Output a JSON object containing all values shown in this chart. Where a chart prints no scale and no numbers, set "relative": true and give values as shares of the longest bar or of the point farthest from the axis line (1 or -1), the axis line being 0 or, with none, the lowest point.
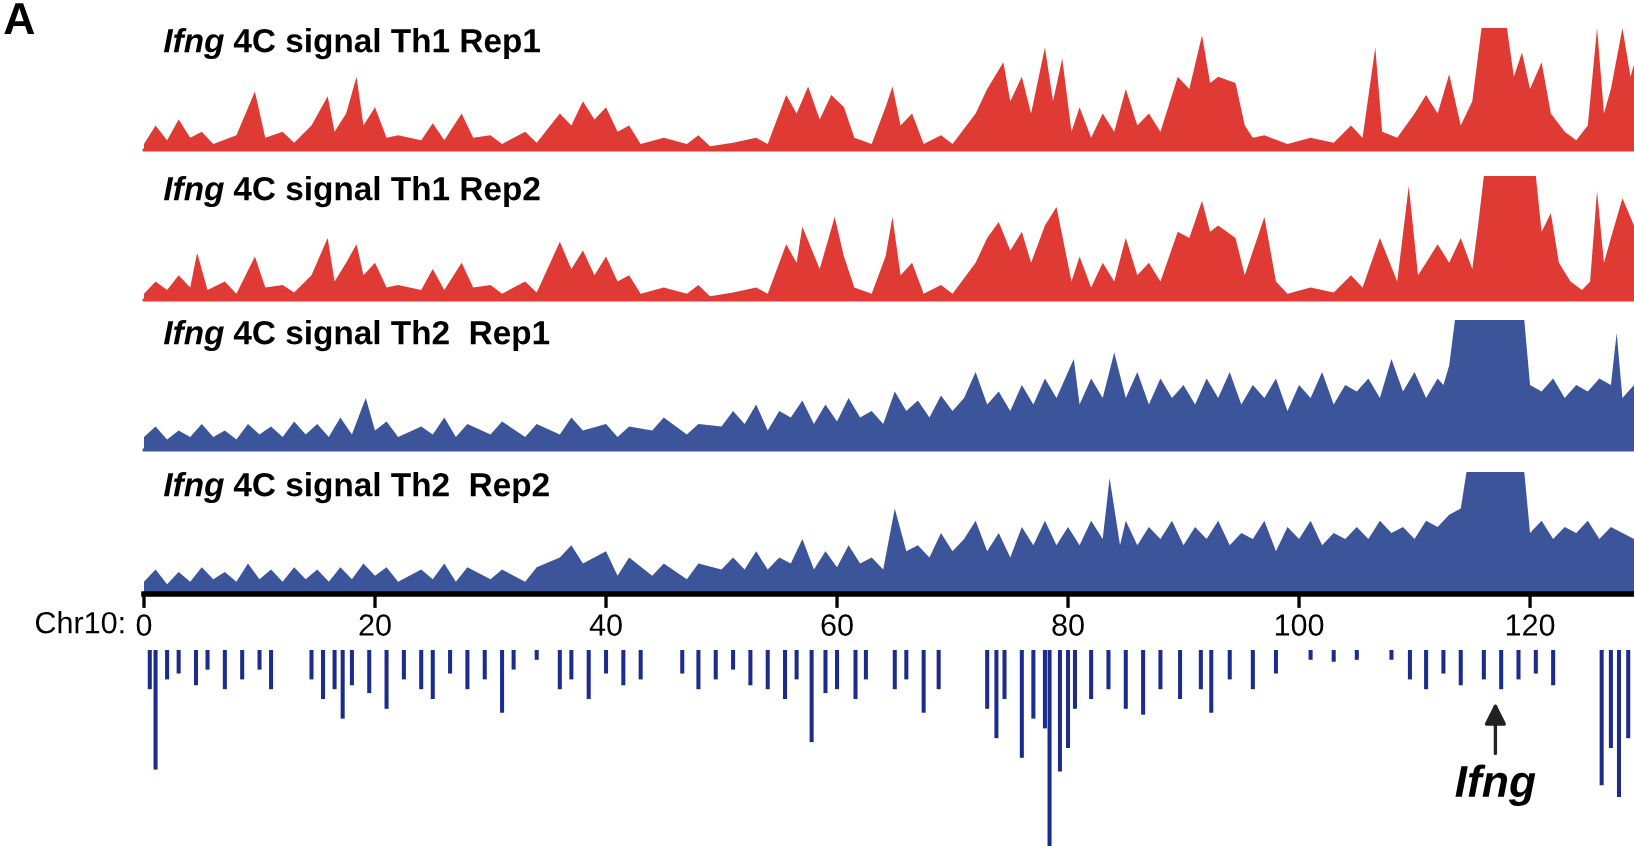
{
  "chart_data": [
    {
      "type": "area",
      "title": "Ifng 4C signal Th1 Rep1",
      "relative": true,
      "xlim": [
        0,
        129
      ],
      "tick_labels": false,
      "annotations": [
        "A"
      ],
      "series": [
        {
          "color": "#e03a35",
          "x": [
            0,
            1,
            2,
            3,
            4,
            5,
            6,
            8,
            9.6,
            10.5,
            12,
            13,
            14.5,
            15.9,
            16.5,
            17.5,
            18.4,
            19,
            20,
            21,
            22,
            24,
            25,
            26,
            27.5,
            28.5,
            30,
            31,
            33,
            34,
            36,
            37,
            38,
            39,
            40,
            41,
            42,
            43,
            45,
            47,
            48,
            49,
            51,
            53,
            54,
            55.6,
            56.5,
            57.5,
            58.5,
            59.5,
            60.6,
            61.5,
            63,
            64.2,
            64.8,
            65.5,
            66.5,
            67.5,
            69,
            70,
            72,
            73,
            74.4,
            75,
            76,
            76.8,
            78,
            78.7,
            79.5,
            80.3,
            81,
            82,
            83,
            84,
            85,
            86,
            87,
            88,
            89.5,
            90.5,
            91.6,
            92.3,
            93,
            94.5,
            95.3,
            96,
            97,
            99,
            101,
            103,
            104.5,
            105.5,
            106.6,
            107.2,
            108.5,
            110,
            111,
            112,
            113,
            114,
            115,
            115.8,
            118,
            118.6,
            119.3,
            120,
            121,
            121.8,
            123,
            124,
            125,
            125.8,
            126.4,
            127,
            128,
            128.7,
            129
          ],
          "values": [
            0.05,
            0.2,
            0.08,
            0.25,
            0.1,
            0.15,
            0.05,
            0.12,
            0.48,
            0.1,
            0.15,
            0.06,
            0.2,
            0.44,
            0.15,
            0.3,
            0.6,
            0.2,
            0.35,
            0.1,
            0.12,
            0.08,
            0.22,
            0.08,
            0.3,
            0.1,
            0.12,
            0.05,
            0.15,
            0.06,
            0.3,
            0.2,
            0.4,
            0.25,
            0.35,
            0.15,
            0.2,
            0.05,
            0.1,
            0.05,
            0.12,
            0.03,
            0.06,
            0.1,
            0.05,
            0.45,
            0.3,
            0.52,
            0.25,
            0.45,
            0.35,
            0.1,
            0.05,
            0.35,
            0.52,
            0.2,
            0.3,
            0.05,
            0.12,
            0.05,
            0.3,
            0.5,
            0.72,
            0.4,
            0.6,
            0.3,
            0.84,
            0.4,
            0.75,
            0.15,
            0.35,
            0.1,
            0.3,
            0.15,
            0.5,
            0.2,
            0.3,
            0.15,
            0.6,
            0.5,
            0.94,
            0.55,
            0.6,
            0.55,
            0.2,
            0.1,
            0.12,
            0.05,
            0.1,
            0.06,
            0.2,
            0.1,
            0.84,
            0.15,
            0.1,
            0.3,
            0.45,
            0.3,
            0.62,
            0.2,
            0.4,
            1,
            1,
            0.6,
            0.8,
            0.5,
            0.72,
            0.3,
            0.15,
            0.08,
            0.2,
            1,
            0.3,
            0.5,
            1,
            0.6,
            0.7
          ]
        }
      ]
    },
    {
      "type": "area",
      "title": "Ifng 4C signal Th1 Rep2",
      "relative": true,
      "xlim": [
        0,
        129
      ],
      "tick_labels": false,
      "series": [
        {
          "color": "#e03a35",
          "x": [
            0,
            1,
            2,
            3,
            4,
            4.6,
            5.5,
            7,
            8,
            9.6,
            10.5,
            12,
            13,
            14.5,
            15.9,
            16.5,
            17.5,
            18.4,
            19,
            20,
            21,
            22,
            24,
            25,
            26,
            27.5,
            28.5,
            30,
            31,
            33,
            34,
            36,
            37,
            38,
            39,
            40,
            41,
            42,
            43,
            45,
            47,
            48,
            49,
            51,
            53,
            54,
            55.6,
            56.5,
            57,
            58.5,
            59.8,
            60.6,
            61.5,
            63,
            64.2,
            64.8,
            65.5,
            66.5,
            67.5,
            69,
            70,
            72,
            73,
            74,
            75,
            76,
            76.8,
            78,
            79,
            80.3,
            81,
            82,
            83,
            84,
            85,
            86,
            87,
            88,
            89.5,
            90.5,
            91.6,
            92.3,
            93,
            94.5,
            95.3,
            97,
            98,
            99,
            101,
            103,
            104.5,
            105.5,
            107,
            108.5,
            109.5,
            110.3,
            111,
            112,
            113,
            114,
            115,
            115.5,
            116,
            118,
            120.5,
            121,
            121.8,
            122.5,
            123.5,
            124.5,
            125.2,
            125.8,
            126.4,
            127,
            128,
            129
          ],
          "values": [
            0.05,
            0.15,
            0.08,
            0.2,
            0.1,
            0.38,
            0.08,
            0.15,
            0.05,
            0.35,
            0.1,
            0.12,
            0.06,
            0.2,
            0.5,
            0.15,
            0.3,
            0.45,
            0.2,
            0.3,
            0.1,
            0.12,
            0.08,
            0.25,
            0.08,
            0.3,
            0.1,
            0.12,
            0.05,
            0.15,
            0.06,
            0.47,
            0.25,
            0.4,
            0.2,
            0.35,
            0.15,
            0.2,
            0.05,
            0.1,
            0.05,
            0.12,
            0.03,
            0.06,
            0.1,
            0.05,
            0.45,
            0.3,
            0.59,
            0.25,
            0.67,
            0.35,
            0.1,
            0.05,
            0.35,
            0.67,
            0.2,
            0.3,
            0.05,
            0.12,
            0.05,
            0.3,
            0.5,
            0.63,
            0.4,
            0.55,
            0.3,
            0.6,
            0.75,
            0.15,
            0.35,
            0.1,
            0.3,
            0.15,
            0.5,
            0.2,
            0.3,
            0.15,
            0.55,
            0.5,
            0.8,
            0.55,
            0.6,
            0.5,
            0.2,
            0.67,
            0.15,
            0.05,
            0.1,
            0.06,
            0.2,
            0.1,
            0.5,
            0.15,
            0.92,
            0.2,
            0.3,
            0.45,
            0.3,
            0.5,
            0.25,
            0.6,
            1,
            1,
            1,
            0.55,
            0.7,
            0.3,
            0.15,
            0.08,
            0.15,
            0.88,
            0.3,
            0.5,
            0.82,
            0.6
          ]
        }
      ]
    },
    {
      "type": "area",
      "title": "Ifng 4C signal Th2  Rep1",
      "relative": true,
      "xlim": [
        0,
        129
      ],
      "tick_labels": false,
      "series": [
        {
          "color": "#3c5499",
          "x": [
            0,
            1,
            2,
            3,
            4,
            5,
            6,
            7,
            8,
            9,
            10,
            11,
            12,
            13,
            14,
            15,
            16,
            17,
            18,
            19.2,
            20,
            21,
            22,
            24,
            25,
            26,
            27,
            28,
            30,
            31,
            33,
            34,
            36,
            37,
            38,
            40,
            41,
            42,
            44,
            45,
            47,
            48,
            50,
            51,
            52,
            53,
            54,
            55,
            56,
            57,
            58,
            59,
            60,
            61,
            62,
            63,
            64,
            65,
            66,
            67,
            68,
            69,
            70,
            71,
            72,
            73,
            74,
            75,
            76,
            77,
            78,
            79,
            80,
            80.5,
            81,
            82,
            83,
            84,
            85,
            86,
            87,
            88,
            89,
            90,
            91,
            92,
            93,
            94,
            95,
            96,
            97,
            98,
            99,
            100,
            101,
            102,
            103,
            104,
            105,
            106,
            107,
            108,
            109,
            110,
            111,
            112,
            112.5,
            113,
            113.5,
            119.5,
            120,
            121,
            122,
            123,
            124,
            125,
            126,
            127,
            127.5,
            128,
            129
          ],
          "values": [
            0.1,
            0.18,
            0.08,
            0.15,
            0.1,
            0.2,
            0.1,
            0.15,
            0.08,
            0.2,
            0.12,
            0.18,
            0.1,
            0.22,
            0.12,
            0.2,
            0.1,
            0.25,
            0.12,
            0.4,
            0.15,
            0.22,
            0.1,
            0.18,
            0.12,
            0.25,
            0.1,
            0.2,
            0.12,
            0.22,
            0.1,
            0.2,
            0.12,
            0.25,
            0.15,
            0.2,
            0.1,
            0.18,
            0.15,
            0.25,
            0.12,
            0.2,
            0.18,
            0.3,
            0.2,
            0.35,
            0.15,
            0.3,
            0.25,
            0.38,
            0.2,
            0.35,
            0.22,
            0.4,
            0.25,
            0.3,
            0.2,
            0.45,
            0.3,
            0.38,
            0.25,
            0.42,
            0.3,
            0.4,
            0.6,
            0.35,
            0.45,
            0.3,
            0.5,
            0.35,
            0.55,
            0.4,
            0.6,
            0.7,
            0.35,
            0.55,
            0.4,
            0.75,
            0.4,
            0.6,
            0.35,
            0.55,
            0.4,
            0.5,
            0.35,
            0.55,
            0.4,
            0.6,
            0.35,
            0.5,
            0.4,
            0.55,
            0.3,
            0.5,
            0.4,
            0.6,
            0.35,
            0.5,
            0.45,
            0.55,
            0.4,
            0.7,
            0.45,
            0.6,
            0.4,
            0.55,
            0.5,
            0.65,
            1,
            1,
            0.5,
            0.45,
            0.55,
            0.4,
            0.5,
            0.45,
            0.55,
            0.5,
            0.9,
            0.4,
            0.5
          ]
        }
      ]
    },
    {
      "type": "area",
      "title": "Ifng 4C signal Th2  Rep2",
      "relative": true,
      "xlim": [
        0,
        129
      ],
      "tick_labels": "x",
      "xticks": [
        0,
        20,
        40,
        60,
        80,
        100,
        120
      ],
      "xlabel": "Chr10:",
      "series": [
        {
          "color": "#3c5499",
          "x": [
            0,
            1,
            2,
            3,
            4,
            5,
            6,
            7,
            8,
            9,
            10,
            11,
            12,
            13,
            14,
            15,
            16,
            17,
            18,
            19,
            20,
            21,
            22,
            24,
            25,
            26,
            27,
            28,
            30,
            31,
            33,
            34,
            36,
            37,
            38,
            40,
            41,
            42,
            44,
            45,
            47,
            48,
            50,
            51,
            52,
            53,
            54,
            55,
            56,
            57,
            58,
            59,
            60,
            61,
            62,
            63,
            64,
            65,
            66,
            67,
            68,
            69,
            70,
            71,
            72,
            73,
            74,
            75,
            76,
            77,
            78,
            79,
            80,
            81,
            82,
            83,
            83.6,
            84.5,
            85,
            86,
            87,
            88,
            89,
            90,
            91,
            92,
            93,
            94,
            95,
            96,
            97,
            98,
            99,
            100,
            101,
            102,
            103,
            104,
            105,
            106,
            107,
            108,
            109,
            110,
            111,
            112,
            113,
            114,
            114.5,
            119.5,
            120,
            121,
            122,
            123,
            124,
            125,
            126,
            127,
            128,
            129
          ],
          "values": [
            0.1,
            0.2,
            0.08,
            0.18,
            0.1,
            0.22,
            0.12,
            0.18,
            0.1,
            0.25,
            0.12,
            0.2,
            0.1,
            0.22,
            0.12,
            0.2,
            0.1,
            0.22,
            0.12,
            0.25,
            0.15,
            0.22,
            0.1,
            0.2,
            0.12,
            0.25,
            0.1,
            0.22,
            0.12,
            0.2,
            0.1,
            0.22,
            0.3,
            0.4,
            0.25,
            0.35,
            0.15,
            0.3,
            0.15,
            0.25,
            0.12,
            0.25,
            0.2,
            0.3,
            0.2,
            0.35,
            0.2,
            0.3,
            0.25,
            0.45,
            0.2,
            0.35,
            0.22,
            0.4,
            0.25,
            0.3,
            0.2,
            0.7,
            0.35,
            0.4,
            0.3,
            0.5,
            0.35,
            0.45,
            0.6,
            0.35,
            0.5,
            0.3,
            0.55,
            0.4,
            0.6,
            0.4,
            0.55,
            0.4,
            0.6,
            0.45,
            0.95,
            0.4,
            0.6,
            0.4,
            0.55,
            0.45,
            0.6,
            0.4,
            0.55,
            0.45,
            0.6,
            0.4,
            0.5,
            0.45,
            0.6,
            0.35,
            0.55,
            0.45,
            0.6,
            0.4,
            0.5,
            0.45,
            0.55,
            0.45,
            0.6,
            0.5,
            0.55,
            0.45,
            0.6,
            0.55,
            0.65,
            0.7,
            1,
            1,
            0.5,
            0.6,
            0.45,
            0.55,
            0.5,
            0.6,
            0.45,
            0.55,
            0.5,
            0.45
          ]
        }
      ]
    },
    {
      "type": "bar",
      "relative": true,
      "xlim": [
        0,
        129
      ],
      "tick_labels": false,
      "annotations": [
        {
          "text": "Ifng",
          "x": 117,
          "y": -0.24
        }
      ],
      "series": [
        {
          "color": "#1c2b8c",
          "x": [
            0.5,
            1,
            2,
            3,
            4.5,
            5.5,
            7,
            8.5,
            10,
            11,
            14.5,
            15.5,
            16.5,
            17.2,
            18,
            19.5,
            21,
            22.5,
            24,
            25,
            26.5,
            28,
            29.5,
            31,
            32,
            34,
            36,
            37,
            38.5,
            40,
            41.5,
            43,
            46.6,
            48,
            49.5,
            51,
            52.5,
            54,
            55.5,
            56.5,
            57.8,
            59,
            60,
            61.6,
            62.5,
            65,
            66,
            67.5,
            68.8,
            73,
            73.8,
            74.5,
            76,
            77,
            78,
            78.4,
            79.3,
            80,
            80.6,
            82,
            83.5,
            85,
            86.5,
            88,
            89.7,
            91.5,
            92.4,
            94,
            96,
            98,
            101,
            103,
            105,
            108,
            109.6,
            111,
            112.5,
            114,
            116,
            117.5,
            119,
            120.5,
            122,
            126.2,
            127,
            127.7,
            128.5
          ],
          "values": [
            -0.2,
            -0.61,
            -0.15,
            -0.12,
            -0.18,
            -0.1,
            -0.2,
            -0.15,
            -0.1,
            -0.2,
            -0.15,
            -0.25,
            -0.2,
            -0.35,
            -0.18,
            -0.22,
            -0.3,
            -0.15,
            -0.2,
            -0.25,
            -0.12,
            -0.2,
            -0.15,
            -0.32,
            -0.1,
            -0.05,
            -0.2,
            -0.15,
            -0.25,
            -0.12,
            -0.18,
            -0.15,
            -0.12,
            -0.2,
            -0.15,
            -0.1,
            -0.18,
            -0.2,
            -0.25,
            -0.15,
            -0.47,
            -0.22,
            -0.2,
            -0.25,
            -0.15,
            -0.2,
            -0.15,
            -0.32,
            -0.2,
            -0.3,
            -0.45,
            -0.25,
            -0.55,
            -0.35,
            -0.4,
            -1,
            -0.62,
            -0.5,
            -0.3,
            -0.25,
            -0.2,
            -0.3,
            -0.33,
            -0.2,
            -0.25,
            -0.2,
            -0.32,
            -0.15,
            -0.2,
            -0.12,
            -0.05,
            -0.06,
            -0.05,
            -0.05,
            -0.15,
            -0.2,
            -0.12,
            -0.18,
            -0.15,
            -0.2,
            -0.15,
            -0.12,
            -0.18,
            -0.69,
            -0.5,
            -0.75,
            -0.45
          ]
        }
      ]
    }
  ]
}
